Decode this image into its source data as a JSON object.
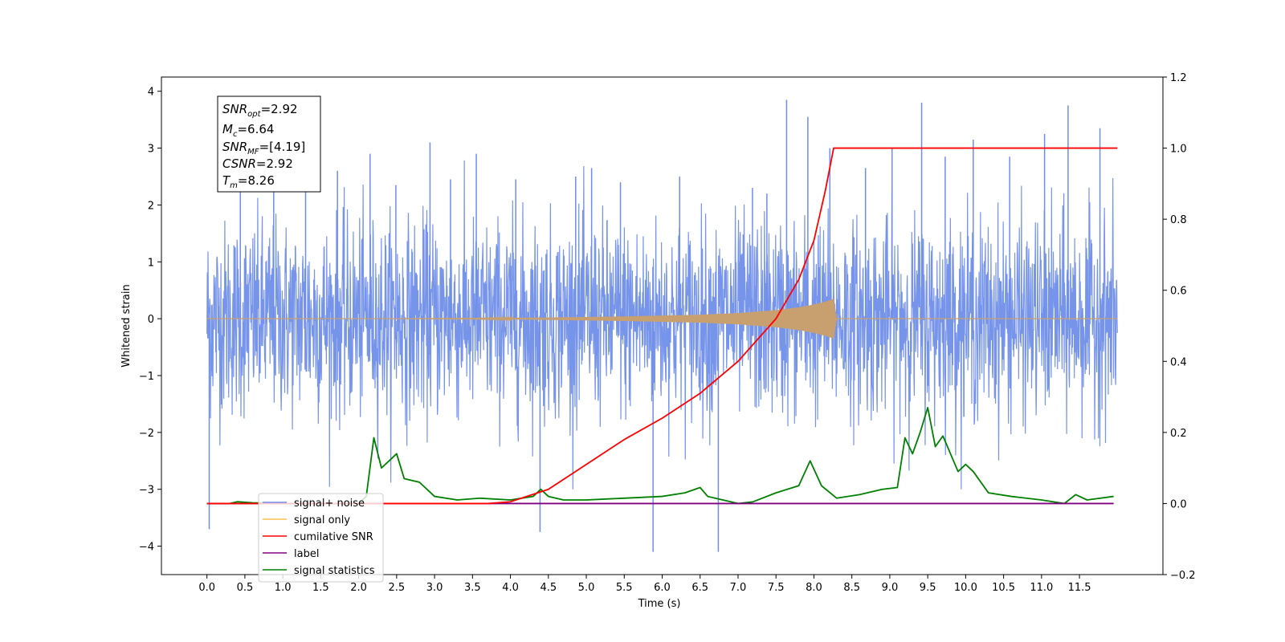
{
  "chart_data": {
    "type": "line",
    "xlabel": "Time (s)",
    "ylabel": "Whitened strain",
    "xlim": [
      -0.6,
      12.6
    ],
    "ylim": [
      -4.5,
      4.25
    ],
    "y2lim": [
      -0.2,
      1.2
    ],
    "grid": false,
    "legend_position": "lower-left",
    "x_ticks": [
      "0.0",
      "0.5",
      "1.0",
      "1.5",
      "2.0",
      "2.5",
      "3.0",
      "3.5",
      "4.0",
      "4.5",
      "5.0",
      "5.5",
      "6.0",
      "6.5",
      "7.0",
      "7.5",
      "8.0",
      "8.5",
      "9.0",
      "9.5",
      "10.0",
      "10.5",
      "11.0",
      "11.5"
    ],
    "y_ticks": [
      "4",
      "3",
      "2",
      "1",
      "0",
      "−1",
      "−2",
      "−3",
      "−4"
    ],
    "y2_ticks": [
      "1.2",
      "1.0",
      "0.8",
      "0.6",
      "0.4",
      "0.2",
      "0.0",
      "−0.2"
    ],
    "annotation": {
      "snr_opt": "=2.92",
      "mc": "=6.64",
      "snr_mf": "=[4.19]",
      "csnr": "=2.92",
      "tm": "=8.26"
    },
    "series": [
      {
        "name": "signal+ noise",
        "color": "#6f8ee8",
        "axis": "left",
        "x_range": [
          0.0,
          12.0
        ],
        "band_core": [
          -1.5,
          1.5
        ],
        "x": [
          0.03,
          0.44,
          0.88,
          1.3,
          1.72,
          2.15,
          2.49,
          2.94,
          3.21,
          3.55,
          4.07,
          4.39,
          4.86,
          5.07,
          5.45,
          5.88,
          6.23,
          6.74,
          7.19,
          7.38,
          7.64,
          7.92,
          8.21,
          8.68,
          9.03,
          9.42,
          9.73,
          10.1,
          10.58,
          11.04,
          11.35,
          11.77
        ],
        "y": [
          -3.7,
          2.65,
          2.4,
          3.2,
          2.6,
          2.9,
          2.35,
          3.1,
          2.45,
          2.9,
          2.45,
          -3.75,
          2.5,
          2.65,
          2.4,
          -4.1,
          2.5,
          -4.1,
          2.3,
          2.2,
          3.85,
          3.55,
          3.0,
          2.65,
          3.0,
          3.8,
          2.85,
          3.15,
          2.85,
          3.25,
          3.75,
          3.35
        ]
      },
      {
        "name": "signal only",
        "color": "#c8a070",
        "axis": "left",
        "x": [
          0.0,
          2.0,
          3.5,
          4.5,
          5.5,
          6.5,
          7.0,
          7.5,
          7.8,
          8.0,
          8.15,
          8.26,
          8.3,
          12.0
        ],
        "amplitude": [
          0.0,
          0.0,
          0.005,
          0.02,
          0.04,
          0.07,
          0.1,
          0.15,
          0.2,
          0.25,
          0.3,
          0.35,
          0.0,
          0.0
        ]
      },
      {
        "name": "cumilative SNR",
        "color": "#ff0000",
        "axis": "right",
        "x": [
          0.0,
          3.7,
          4.0,
          4.5,
          5.0,
          5.5,
          6.0,
          6.5,
          7.0,
          7.5,
          7.8,
          8.0,
          8.15,
          8.26,
          12.0
        ],
        "y": [
          0.0,
          0.0,
          0.005,
          0.04,
          0.11,
          0.18,
          0.24,
          0.31,
          0.4,
          0.52,
          0.63,
          0.74,
          0.88,
          1.0,
          1.0
        ]
      },
      {
        "name": "label",
        "color": "#800080",
        "axis": "right",
        "x": [
          0.0,
          11.95
        ],
        "y": [
          0.0,
          0.0
        ]
      },
      {
        "name": "signal statistics",
        "color": "#008000",
        "axis": "right",
        "x": [
          0.0,
          0.3,
          0.4,
          0.6,
          1.0,
          1.5,
          2.0,
          2.1,
          2.2,
          2.3,
          2.4,
          2.5,
          2.6,
          2.8,
          3.0,
          3.3,
          3.6,
          4.0,
          4.3,
          4.4,
          4.5,
          4.7,
          5.0,
          5.5,
          6.0,
          6.3,
          6.5,
          6.6,
          7.0,
          7.2,
          7.5,
          7.8,
          7.95,
          8.1,
          8.3,
          8.6,
          8.9,
          9.1,
          9.2,
          9.3,
          9.4,
          9.5,
          9.6,
          9.7,
          9.8,
          9.9,
          10.0,
          10.1,
          10.3,
          10.6,
          11.0,
          11.3,
          11.45,
          11.6,
          11.95
        ],
        "y": [
          0.0,
          0.0,
          0.005,
          0.002,
          0.0,
          0.0,
          0.0,
          0.02,
          0.185,
          0.1,
          0.12,
          0.14,
          0.07,
          0.06,
          0.02,
          0.01,
          0.015,
          0.01,
          0.02,
          0.04,
          0.02,
          0.01,
          0.01,
          0.015,
          0.02,
          0.03,
          0.045,
          0.02,
          0.0,
          0.005,
          0.03,
          0.05,
          0.12,
          0.05,
          0.015,
          0.025,
          0.04,
          0.045,
          0.185,
          0.14,
          0.2,
          0.27,
          0.16,
          0.19,
          0.14,
          0.09,
          0.11,
          0.09,
          0.03,
          0.02,
          0.01,
          0.0,
          0.025,
          0.01,
          0.02
        ]
      }
    ]
  }
}
